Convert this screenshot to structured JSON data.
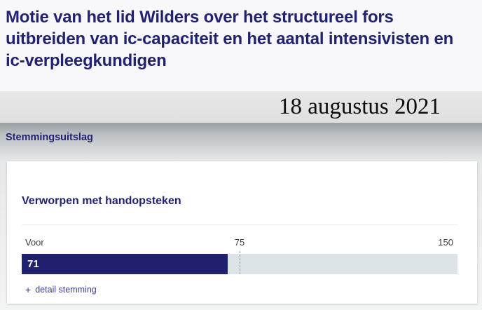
{
  "header": {
    "title": "Motie van het lid Wilders over het structureel fors uitbreiden van ic-capaciteit en het aantal intensivisten en ic-verpleegkundigen",
    "date": "18 augustus 2021",
    "section_heading": "Stemmingsuitslag"
  },
  "vote_card": {
    "outcome": "Verworpen met handopsteken",
    "detail_link": {
      "icon": "+",
      "label": "detail stemming"
    }
  },
  "chart_data": {
    "type": "bar",
    "categories": [
      "Voor"
    ],
    "values": [
      71
    ],
    "xlim": [
      0,
      150
    ],
    "tick_labels": [
      "75",
      "150"
    ],
    "marker_value": 75,
    "bar_color": "#20206e",
    "track_color": "#dde4e8",
    "value_label_color": "#ffffff"
  },
  "colors": {
    "accent_navy": "#232270",
    "link": "#3d3d94",
    "banner_bg": "#e4e4e4",
    "banner_border": "#9aa0a5",
    "band_gradient_top": "#9ba0a5",
    "band_gradient_bottom": "#e6e8e9",
    "page_bg": "#f8f8fa"
  }
}
